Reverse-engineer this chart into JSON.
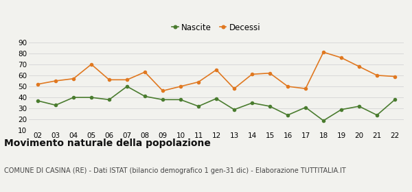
{
  "years": [
    "02",
    "03",
    "04",
    "05",
    "06",
    "07",
    "08",
    "09",
    "10",
    "11",
    "12",
    "13",
    "14",
    "15",
    "16",
    "17",
    "18",
    "19",
    "20",
    "21",
    "22"
  ],
  "nascite": [
    37,
    33,
    40,
    40,
    38,
    50,
    41,
    38,
    38,
    32,
    39,
    29,
    35,
    32,
    24,
    31,
    19,
    29,
    32,
    24,
    38
  ],
  "decessi": [
    52,
    55,
    57,
    70,
    56,
    56,
    63,
    46,
    50,
    54,
    65,
    48,
    61,
    62,
    50,
    48,
    81,
    76,
    68,
    60,
    59
  ],
  "nascite_color": "#4a7c2f",
  "decessi_color": "#e07820",
  "bg_color": "#f2f2ee",
  "grid_color": "#d8d8d8",
  "ylim": [
    10,
    90
  ],
  "yticks": [
    10,
    20,
    30,
    40,
    50,
    60,
    70,
    80,
    90
  ],
  "title": "Movimento naturale della popolazione",
  "subtitle": "COMUNE DI CASINA (RE) - Dati ISTAT (bilancio demografico 1 gen-31 dic) - Elaborazione TUTTITALIA.IT",
  "legend_nascite": "Nascite",
  "legend_decessi": "Decessi",
  "title_fontsize": 10,
  "subtitle_fontsize": 7,
  "tick_fontsize": 7.5
}
